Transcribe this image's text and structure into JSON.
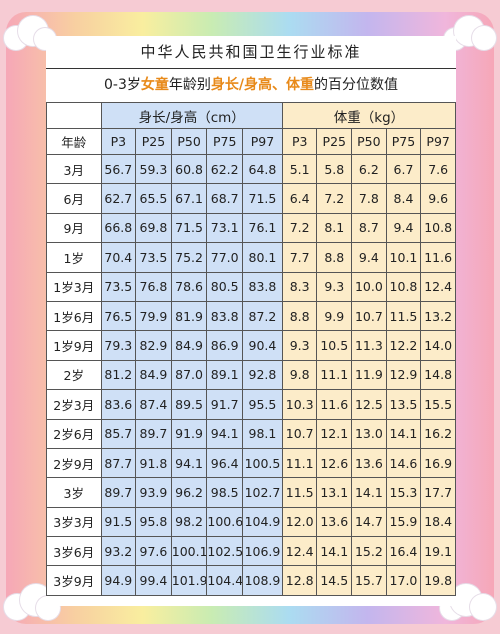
{
  "title": "中华人民共和国卫生行业标准",
  "subtitle": {
    "prefix": "0-3岁",
    "highlight1": "女童",
    "middle": "年龄别",
    "highlight2": "身长/身高、体重",
    "suffix": "的百分位数值"
  },
  "table": {
    "group_height": "身长/身高（cm）",
    "group_weight": "体重（kg）",
    "age_header": "年龄",
    "percentiles": [
      "P3",
      "P25",
      "P50",
      "P75",
      "P97"
    ],
    "rows": [
      {
        "age": "3月",
        "height": [
          "56.7",
          "59.3",
          "60.8",
          "62.2",
          "64.8"
        ],
        "weight": [
          "5.1",
          "5.8",
          "6.2",
          "6.7",
          "7.6"
        ]
      },
      {
        "age": "6月",
        "height": [
          "62.7",
          "65.5",
          "67.1",
          "68.7",
          "71.5"
        ],
        "weight": [
          "6.4",
          "7.2",
          "7.8",
          "8.4",
          "9.6"
        ]
      },
      {
        "age": "9月",
        "height": [
          "66.8",
          "69.8",
          "71.5",
          "73.1",
          "76.1"
        ],
        "weight": [
          "7.2",
          "8.1",
          "8.7",
          "9.4",
          "10.8"
        ]
      },
      {
        "age": "1岁",
        "height": [
          "70.4",
          "73.5",
          "75.2",
          "77.0",
          "80.1"
        ],
        "weight": [
          "7.7",
          "8.8",
          "9.4",
          "10.1",
          "11.6"
        ]
      },
      {
        "age": "1岁3月",
        "height": [
          "73.5",
          "76.8",
          "78.6",
          "80.5",
          "83.8"
        ],
        "weight": [
          "8.3",
          "9.3",
          "10.0",
          "10.8",
          "12.4"
        ]
      },
      {
        "age": "1岁6月",
        "height": [
          "76.5",
          "79.9",
          "81.9",
          "83.8",
          "87.2"
        ],
        "weight": [
          "8.8",
          "9.9",
          "10.7",
          "11.5",
          "13.2"
        ]
      },
      {
        "age": "1岁9月",
        "height": [
          "79.3",
          "82.9",
          "84.9",
          "86.9",
          "90.4"
        ],
        "weight": [
          "9.3",
          "10.5",
          "11.3",
          "12.2",
          "14.0"
        ]
      },
      {
        "age": "2岁",
        "height": [
          "81.2",
          "84.9",
          "87.0",
          "89.1",
          "92.8"
        ],
        "weight": [
          "9.8",
          "11.1",
          "11.9",
          "12.9",
          "14.8"
        ]
      },
      {
        "age": "2岁3月",
        "height": [
          "83.6",
          "87.4",
          "89.5",
          "91.7",
          "95.5"
        ],
        "weight": [
          "10.3",
          "11.6",
          "12.5",
          "13.5",
          "15.5"
        ]
      },
      {
        "age": "2岁6月",
        "height": [
          "85.7",
          "89.7",
          "91.9",
          "94.1",
          "98.1"
        ],
        "weight": [
          "10.7",
          "12.1",
          "13.0",
          "14.1",
          "16.2"
        ]
      },
      {
        "age": "2岁9月",
        "height": [
          "87.7",
          "91.8",
          "94.1",
          "96.4",
          "100.5"
        ],
        "weight": [
          "11.1",
          "12.6",
          "13.6",
          "14.6",
          "16.9"
        ]
      },
      {
        "age": "3岁",
        "height": [
          "89.7",
          "93.9",
          "96.2",
          "98.5",
          "102.7"
        ],
        "weight": [
          "11.5",
          "13.1",
          "14.1",
          "15.3",
          "17.7"
        ]
      },
      {
        "age": "3岁3月",
        "height": [
          "91.5",
          "95.8",
          "98.2",
          "100.6",
          "104.9"
        ],
        "weight": [
          "12.0",
          "13.6",
          "14.7",
          "15.9",
          "18.4"
        ]
      },
      {
        "age": "3岁6月",
        "height": [
          "93.2",
          "97.6",
          "100.1",
          "102.5",
          "106.9"
        ],
        "weight": [
          "12.4",
          "14.1",
          "15.2",
          "16.4",
          "19.1"
        ]
      },
      {
        "age": "3岁9月",
        "height": [
          "94.9",
          "99.4",
          "101.9",
          "104.4",
          "108.9"
        ],
        "weight": [
          "12.8",
          "14.5",
          "15.7",
          "17.0",
          "19.8"
        ]
      }
    ]
  },
  "colors": {
    "height_bg": "#cfe0f6",
    "weight_bg": "#fcecc9",
    "highlight": "#e88a1a",
    "page_bg": "#f6cbd3"
  }
}
